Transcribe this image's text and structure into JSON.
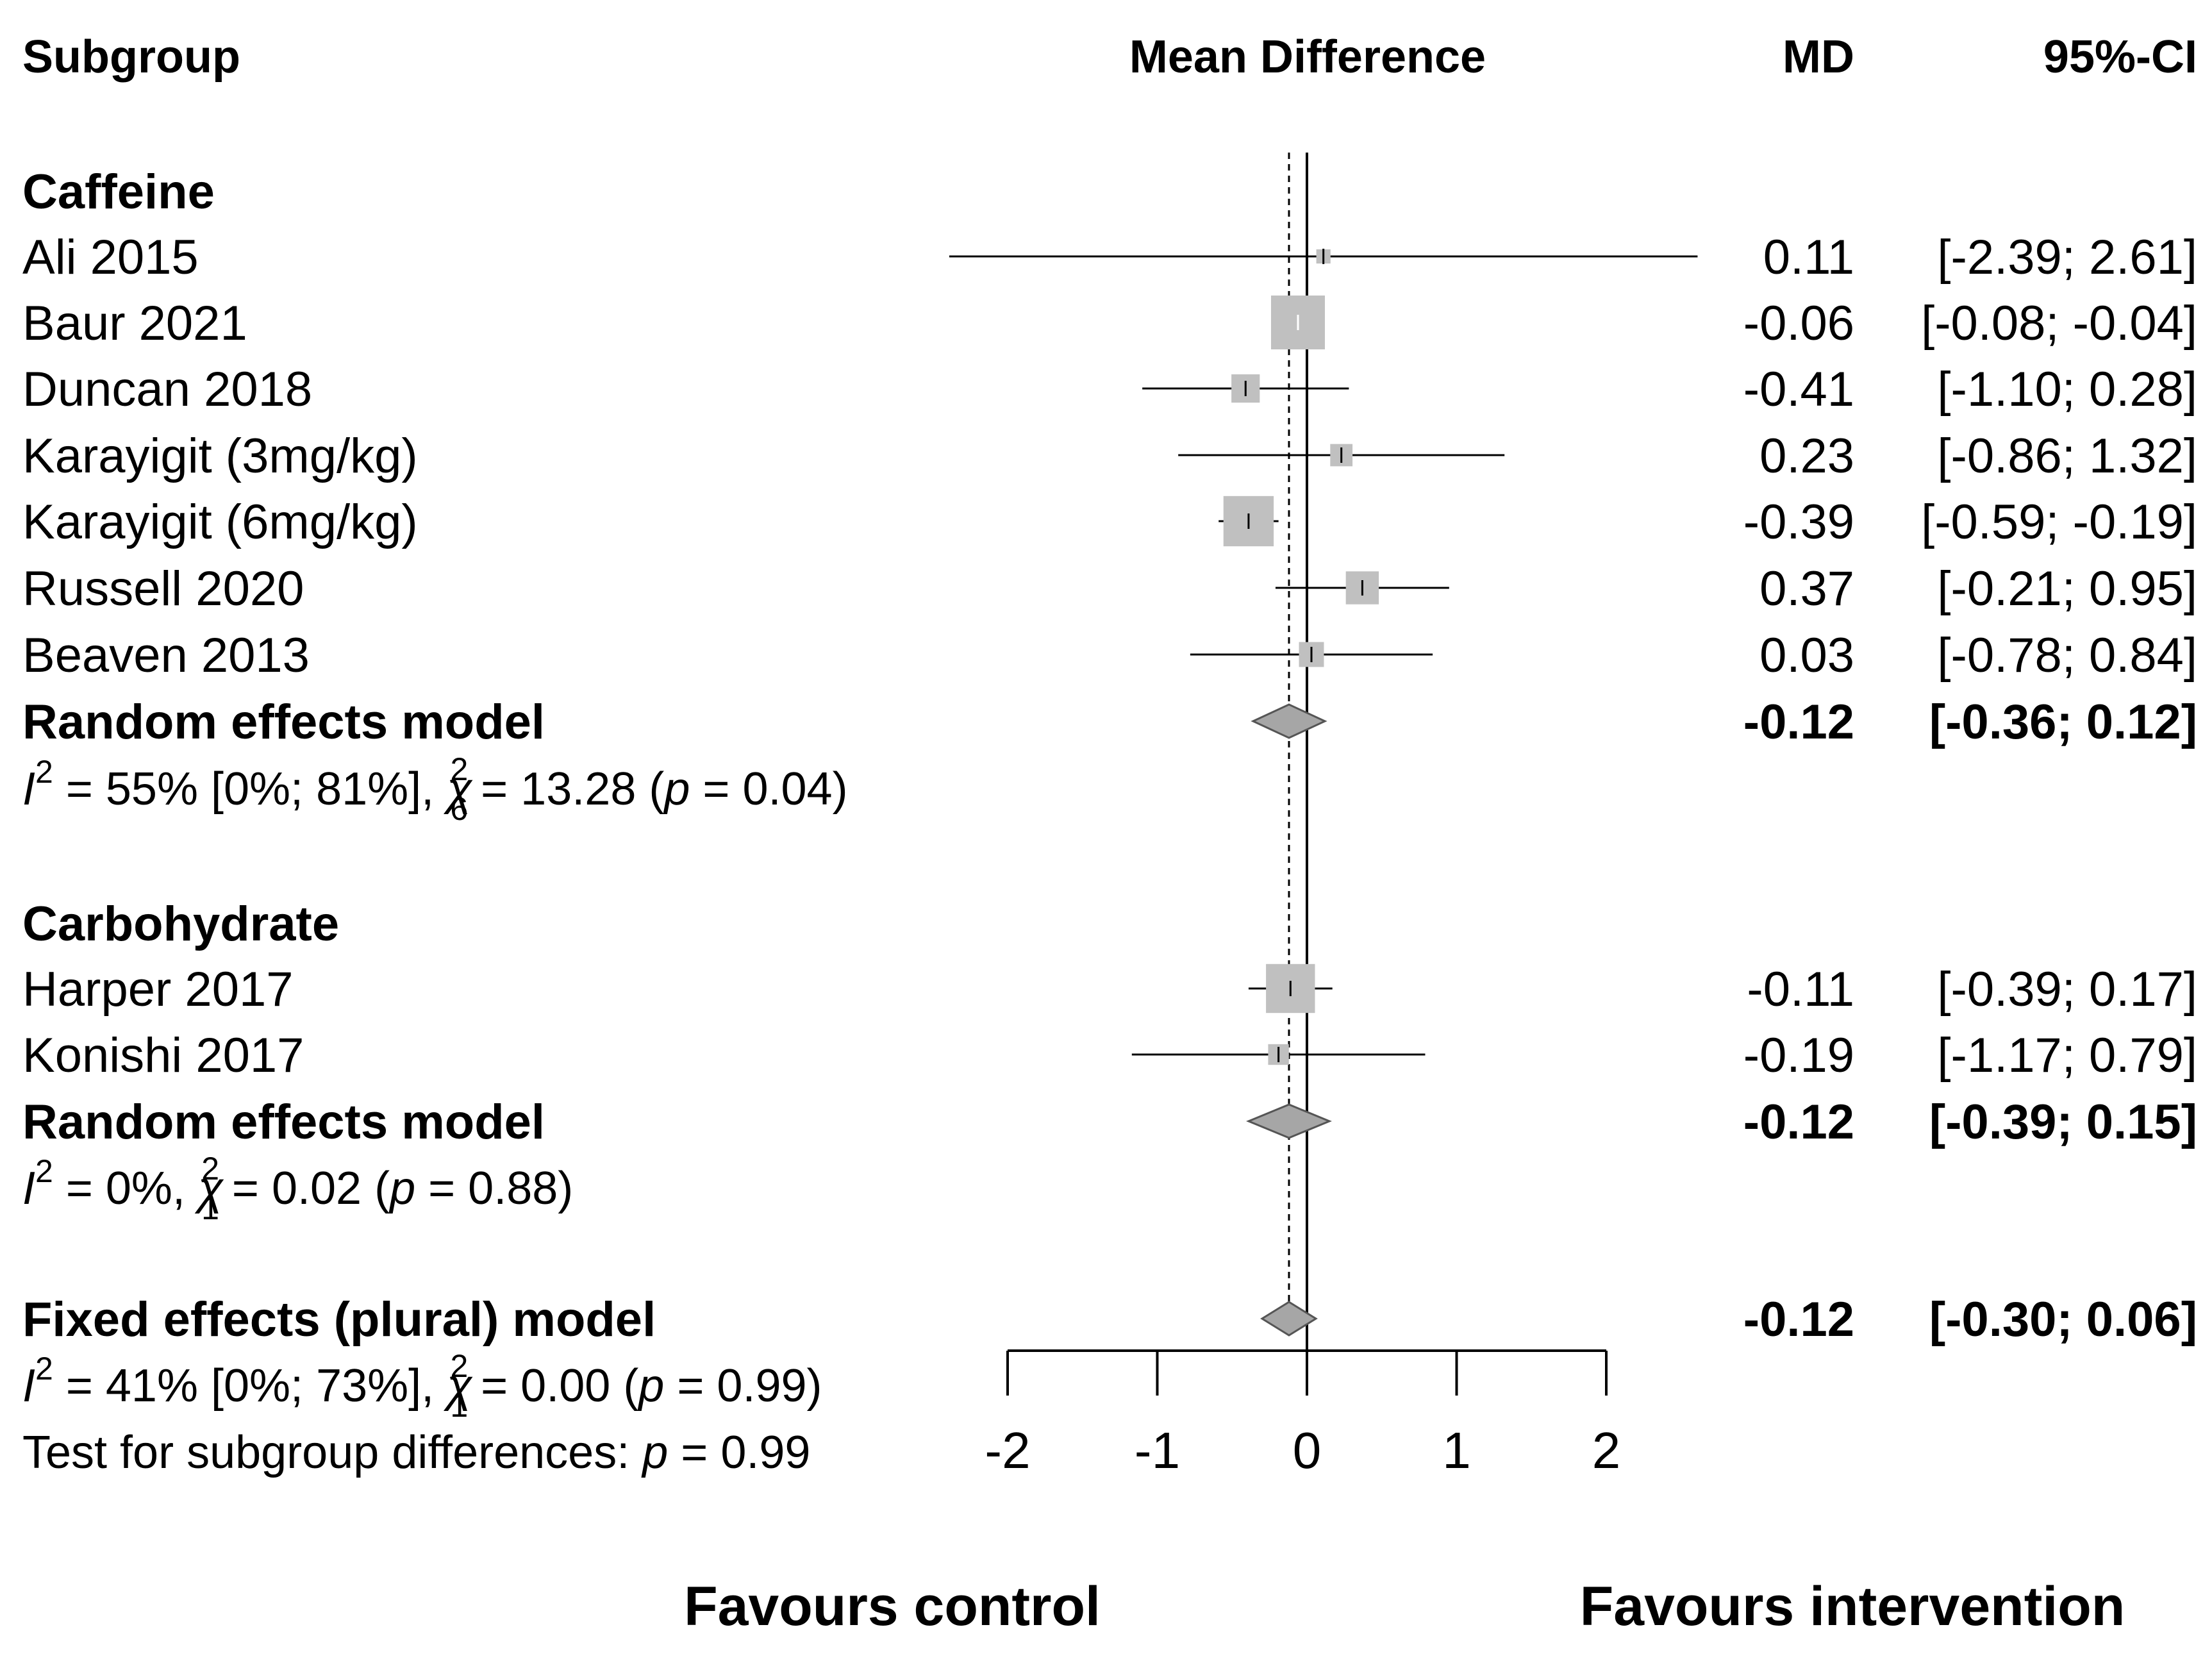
{
  "chart_data": {
    "type": "forest",
    "x_axis_label": "Mean Difference",
    "xlim": [
      -2,
      2
    ],
    "xticks": [
      -2,
      -1,
      0,
      1,
      2
    ],
    "null_line": 0,
    "pooled_line": -0.12,
    "headers": {
      "subgroup": "Subgroup",
      "axis": "Mean Difference",
      "md": "MD",
      "ci": "95%-CI"
    },
    "groups": [
      {
        "name": "Caffeine",
        "studies": [
          {
            "label": "Ali 2015",
            "md": 0.11,
            "lower": -2.39,
            "upper": 2.61,
            "md_text": "0.11",
            "ci_text": "[-2.39;  2.61]",
            "weight": 0.02
          },
          {
            "label": "Baur 2021",
            "md": -0.06,
            "lower": -0.08,
            "upper": -0.04,
            "md_text": "-0.06",
            "ci_text": "[-0.08; -0.04]",
            "weight": 1.0
          },
          {
            "label": "Duncan 2018",
            "md": -0.41,
            "lower": -1.1,
            "upper": 0.28,
            "md_text": "-0.41",
            "ci_text": "[-1.10;  0.28]",
            "weight": 0.2
          },
          {
            "label": "Karayigit (3mg/kg)",
            "md": 0.23,
            "lower": -0.86,
            "upper": 1.32,
            "md_text": "0.23",
            "ci_text": "[-0.86;  1.32]",
            "weight": 0.1
          },
          {
            "label": "Karayigit (6mg/kg)",
            "md": -0.39,
            "lower": -0.59,
            "upper": -0.19,
            "md_text": "-0.39",
            "ci_text": "[-0.59; -0.19]",
            "weight": 0.85
          },
          {
            "label": "Russell 2020",
            "md": 0.37,
            "lower": -0.21,
            "upper": 0.95,
            "md_text": "0.37",
            "ci_text": "[-0.21;  0.95]",
            "weight": 0.3
          },
          {
            "label": "Beaven 2013",
            "md": 0.03,
            "lower": -0.78,
            "upper": 0.84,
            "md_text": "0.03",
            "ci_text": "[-0.78;  0.84]",
            "weight": 0.14
          }
        ],
        "model": {
          "label": "Random effects model",
          "md": -0.12,
          "lower": -0.36,
          "upper": 0.12,
          "md_text": "-0.12",
          "ci_text": "[-0.36;  0.12]"
        },
        "heterogeneity": {
          "i_letter": "I",
          "i_sup": "2",
          "i_value": " = 55% [0%; 81%], ",
          "chi": "χ",
          "chi_sup": "2",
          "chi_sub": "6",
          "chi_value": " = 13.28 (",
          "p_letter": "p",
          "p_value": " = 0.04)"
        }
      },
      {
        "name": "Carbohydrate",
        "studies": [
          {
            "label": "Harper 2017",
            "md": -0.11,
            "lower": -0.39,
            "upper": 0.17,
            "md_text": "-0.11",
            "ci_text": "[-0.39;  0.17]",
            "weight": 0.8
          },
          {
            "label": "Konishi 2017",
            "md": -0.19,
            "lower": -1.17,
            "upper": 0.79,
            "md_text": "-0.19",
            "ci_text": "[-1.17;  0.79]",
            "weight": 0.08
          }
        ],
        "model": {
          "label": "Random effects model",
          "md": -0.12,
          "lower": -0.39,
          "upper": 0.15,
          "md_text": "-0.12",
          "ci_text": "[-0.39;  0.15]"
        },
        "heterogeneity": {
          "i_letter": "I",
          "i_sup": "2",
          "i_value": " = 0%, ",
          "chi": "χ",
          "chi_sup": "2",
          "chi_sub": "1",
          "chi_value": " = 0.02 (",
          "p_letter": "p",
          "p_value": " = 0.88)"
        }
      }
    ],
    "overall": {
      "label": "Fixed effects (plural) model",
      "md": -0.12,
      "lower": -0.3,
      "upper": 0.06,
      "md_text": "-0.12",
      "ci_text": "[-0.30;  0.06]",
      "heterogeneity": {
        "i_letter": "I",
        "i_sup": "2",
        "i_value": " = 41% [0%; 73%], ",
        "chi": "χ",
        "chi_sup": "2",
        "chi_sub": "1",
        "chi_value": " = 0.00 (",
        "p_letter": "p",
        "p_value": " = 0.99)"
      },
      "subgroup_test": {
        "text": "Test for subgroup differences:  ",
        "p_letter": "p",
        "p_value": " = 0.99"
      }
    },
    "favours_left": "Favours control",
    "favours_right": "Favours intervention"
  },
  "colors": {
    "ink": "#000000",
    "box_fill": "#c0c0c0",
    "diamond_fill": "#a6a6a6",
    "diamond_stroke": "#555555"
  }
}
